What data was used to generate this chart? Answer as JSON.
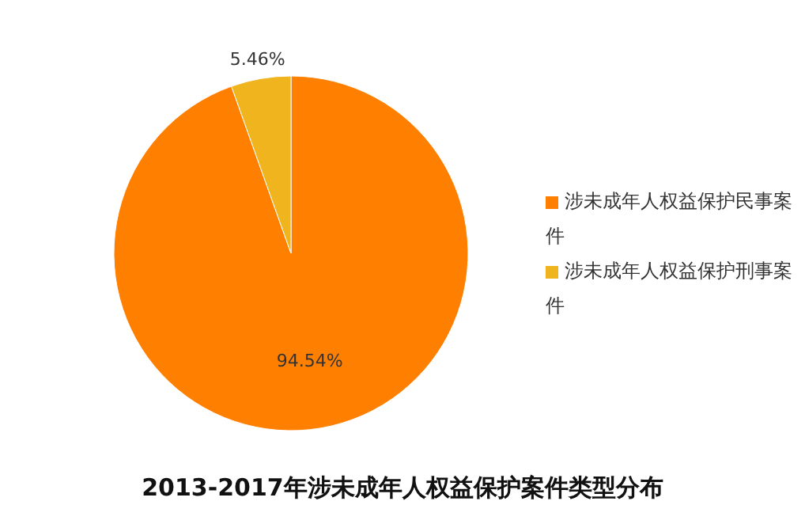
{
  "chart_data": {
    "type": "pie",
    "title": "2013-2017年涉未成年人权益保护案件类型分布",
    "categories": [
      "涉未成年人权益保护民事案件",
      "涉未成年人权益保护刑事案件"
    ],
    "values": [
      94.54,
      5.46
    ],
    "colors": [
      "#ff8000",
      "#f0b41e"
    ],
    "value_labels": [
      "94.54%",
      "5.46%"
    ],
    "legend": "right"
  }
}
